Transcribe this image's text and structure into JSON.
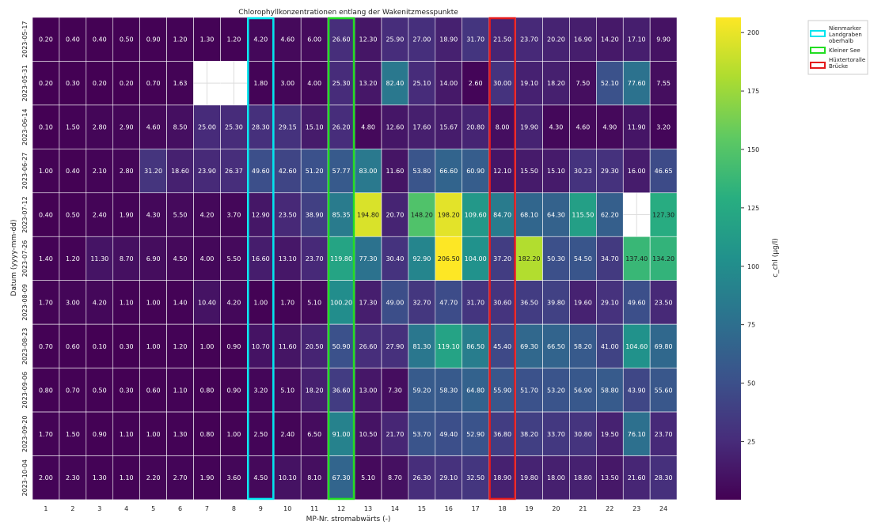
{
  "chart_data": {
    "type": "heatmap",
    "title": "Chlorophyllkonzentrationen entlang der Wakenitzmesspunkte",
    "xlabel": "MP-Nr. stromabwärts (-)",
    "ylabel": "Datum (yyyy-mm-dd)",
    "x": [
      "1",
      "2",
      "3",
      "4",
      "5",
      "6",
      "7",
      "8",
      "9",
      "10",
      "11",
      "12",
      "13",
      "14",
      "15",
      "16",
      "17",
      "18",
      "19",
      "20",
      "21",
      "22",
      "23",
      "24"
    ],
    "y": [
      "2023-05-17",
      "2023-05-31",
      "2023-06-14",
      "2023-06-27",
      "2023-07-12",
      "2023-07-26",
      "2023-08-09",
      "2023-08-23",
      "2023-09-06",
      "2023-09-20",
      "2023-10-04"
    ],
    "values": [
      [
        0.2,
        0.4,
        0.4,
        0.5,
        0.9,
        1.2,
        1.3,
        1.2,
        4.2,
        4.6,
        6.0,
        26.6,
        12.3,
        25.9,
        27.0,
        18.9,
        31.7,
        21.5,
        23.7,
        20.2,
        16.9,
        14.2,
        17.1,
        9.9
      ],
      [
        0.2,
        0.3,
        0.2,
        0.2,
        0.7,
        1.63,
        null,
        null,
        1.8,
        3.0,
        4.0,
        25.3,
        13.2,
        82.4,
        25.1,
        14.0,
        2.6,
        30.0,
        19.1,
        18.2,
        7.5,
        52.1,
        77.6,
        7.55
      ],
      [
        0.1,
        1.5,
        2.8,
        2.9,
        4.6,
        8.5,
        25.0,
        25.3,
        28.3,
        29.15,
        15.1,
        26.2,
        4.8,
        12.6,
        17.6,
        15.67,
        20.8,
        8.0,
        19.9,
        4.3,
        4.6,
        4.9,
        11.9,
        3.2
      ],
      [
        1.0,
        0.4,
        2.1,
        2.8,
        31.2,
        18.6,
        23.9,
        26.37,
        49.6,
        42.6,
        51.2,
        57.77,
        83.0,
        11.6,
        53.8,
        66.6,
        60.9,
        12.1,
        15.5,
        15.1,
        30.23,
        29.3,
        16.0,
        46.65
      ],
      [
        0.4,
        0.5,
        2.4,
        1.9,
        4.3,
        5.5,
        4.2,
        3.7,
        12.9,
        23.5,
        38.9,
        85.35,
        194.8,
        20.7,
        148.2,
        198.2,
        109.6,
        84.7,
        68.1,
        64.3,
        115.5,
        62.2,
        null,
        127.3
      ],
      [
        1.4,
        1.2,
        11.3,
        8.7,
        6.9,
        4.5,
        4.0,
        5.5,
        16.6,
        13.1,
        23.7,
        119.8,
        77.3,
        30.4,
        92.9,
        206.5,
        104.0,
        37.2,
        182.2,
        50.3,
        54.5,
        34.7,
        137.4,
        134.2
      ],
      [
        1.7,
        3.0,
        4.2,
        1.1,
        1.0,
        1.4,
        10.4,
        4.2,
        1.0,
        1.7,
        5.1,
        100.2,
        17.3,
        49.0,
        32.7,
        47.7,
        31.7,
        30.6,
        36.5,
        39.8,
        19.6,
        29.1,
        49.6,
        23.5
      ],
      [
        0.7,
        0.6,
        0.1,
        0.3,
        1.0,
        1.2,
        1.0,
        0.9,
        10.7,
        11.6,
        20.5,
        50.9,
        26.6,
        27.9,
        81.3,
        119.1,
        86.5,
        45.4,
        69.3,
        66.5,
        58.2,
        41.0,
        104.6,
        69.8
      ],
      [
        0.8,
        0.7,
        0.5,
        0.3,
        0.6,
        1.1,
        0.8,
        0.9,
        3.2,
        5.1,
        18.2,
        36.6,
        13.0,
        7.3,
        59.2,
        58.3,
        64.8,
        55.9,
        51.7,
        53.2,
        56.9,
        58.8,
        43.9,
        55.6
      ],
      [
        1.7,
        1.5,
        0.9,
        1.1,
        1.0,
        1.3,
        0.8,
        1.0,
        2.5,
        2.4,
        6.5,
        91.0,
        10.5,
        21.7,
        53.7,
        49.4,
        52.9,
        36.8,
        38.2,
        33.7,
        30.8,
        19.5,
        76.1,
        23.7
      ],
      [
        2.0,
        2.3,
        1.3,
        1.1,
        2.2,
        2.7,
        1.9,
        3.6,
        4.5,
        10.1,
        8.1,
        67.3,
        5.1,
        8.7,
        26.3,
        29.1,
        32.5,
        18.9,
        19.8,
        18.0,
        18.8,
        13.5,
        21.6,
        28.3
      ]
    ],
    "colormap": "viridis",
    "vmin": 0.1,
    "vmax": 206.5,
    "colorbar": {
      "label": "c_chl (µg/l)",
      "ticks": [
        25,
        50,
        75,
        100,
        125,
        150,
        175,
        200
      ]
    },
    "highlights": [
      {
        "column": "9",
        "color": "#00e5ee",
        "label": "Nienmarker Landgraben oberhalb"
      },
      {
        "column": "12",
        "color": "#22dd22",
        "label": "Kleiner See"
      },
      {
        "column": "18",
        "color": "#e31a1c",
        "label": "Hüxtertoralle Brücke"
      }
    ],
    "legend_position": "top-right",
    "grid": true
  }
}
